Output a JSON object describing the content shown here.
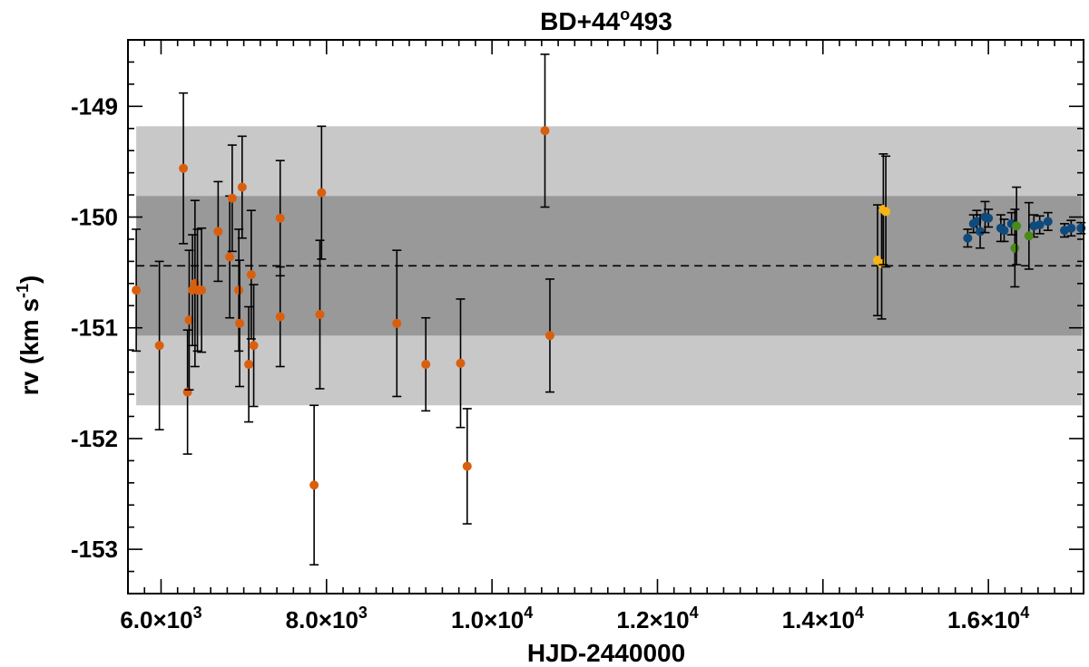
{
  "chart_data": {
    "type": "scatter",
    "title": {
      "main": "BD+44",
      "sup": "o",
      "rest": "493"
    },
    "xlabel": "HJD-2440000",
    "ylabel": {
      "main": "rv (km s",
      "sup": "-1",
      "close": ")"
    },
    "xlim": [
      5600,
      17150
    ],
    "ylim": [
      -153.4,
      -148.4
    ],
    "x_ticks": [
      {
        "value": 6000,
        "mantissa": "6.0",
        "times": "×10",
        "exp": "3"
      },
      {
        "value": 8000,
        "mantissa": "8.0",
        "times": "×10",
        "exp": "3"
      },
      {
        "value": 10000,
        "mantissa": "1.0",
        "times": "×10",
        "exp": "4"
      },
      {
        "value": 12000,
        "mantissa": "1.2",
        "times": "×10",
        "exp": "4"
      },
      {
        "value": 14000,
        "mantissa": "1.4",
        "times": "×10",
        "exp": "4"
      },
      {
        "value": 16000,
        "mantissa": "1.6",
        "times": "×10",
        "exp": "4"
      }
    ],
    "y_ticks": [
      {
        "value": -149,
        "label": "-149"
      },
      {
        "value": -150,
        "label": "-150"
      },
      {
        "value": -151,
        "label": "-151"
      },
      {
        "value": -152,
        "label": "-152"
      },
      {
        "value": -153,
        "label": "-153"
      }
    ],
    "mean": -150.44,
    "bands": [
      {
        "y0": -151.7,
        "y1": -149.18,
        "color": "#c8c8c8"
      },
      {
        "y0": -151.07,
        "y1": -149.81,
        "color": "#999999"
      }
    ],
    "series": [
      {
        "color": "#d95f0e",
        "points": [
          {
            "x": 5700,
            "y": -150.66,
            "err": 0.55
          },
          {
            "x": 5980,
            "y": -151.16,
            "err": 0.76
          },
          {
            "x": 6270,
            "y": -149.56,
            "err": 0.68
          },
          {
            "x": 6320,
            "y": -151.58,
            "err": 0.56
          },
          {
            "x": 6340,
            "y": -150.93,
            "err": 0.63
          },
          {
            "x": 6380,
            "y": -150.66,
            "err": 0.5
          },
          {
            "x": 6410,
            "y": -150.6,
            "err": 0.75
          },
          {
            "x": 6440,
            "y": -150.66,
            "err": 0.55
          },
          {
            "x": 6490,
            "y": -150.66,
            "err": 0.56
          },
          {
            "x": 6690,
            "y": -150.13,
            "err": 0.45
          },
          {
            "x": 6830,
            "y": -150.36,
            "err": 0.55
          },
          {
            "x": 6860,
            "y": -149.83,
            "err": 0.48
          },
          {
            "x": 6940,
            "y": -150.66,
            "err": 0.55
          },
          {
            "x": 6950,
            "y": -150.96,
            "err": 0.57
          },
          {
            "x": 6980,
            "y": -149.73,
            "err": 0.46
          },
          {
            "x": 7060,
            "y": -151.33,
            "err": 0.52
          },
          {
            "x": 7090,
            "y": -150.52,
            "err": 0.58
          },
          {
            "x": 7120,
            "y": -151.16,
            "err": 0.55
          },
          {
            "x": 7440,
            "y": -150.01,
            "err": 0.52
          },
          {
            "x": 7440,
            "y": -150.9,
            "err": 0.45
          },
          {
            "x": 7850,
            "y": -152.42,
            "err": 0.72
          },
          {
            "x": 7920,
            "y": -150.88,
            "err": 0.67
          },
          {
            "x": 7940,
            "y": -149.78,
            "err": 0.6
          },
          {
            "x": 8850,
            "y": -150.96,
            "err": 0.66
          },
          {
            "x": 9200,
            "y": -151.33,
            "err": 0.42
          },
          {
            "x": 9620,
            "y": -151.32,
            "err": 0.58
          },
          {
            "x": 9700,
            "y": -152.25,
            "err": 0.52
          },
          {
            "x": 10640,
            "y": -149.22,
            "err": 0.69
          },
          {
            "x": 10700,
            "y": -151.07,
            "err": 0.51
          }
        ]
      },
      {
        "color": "#f6b417",
        "points": [
          {
            "x": 14660,
            "y": -150.39,
            "err": 0.5
          },
          {
            "x": 14710,
            "y": -150.42,
            "err": 0.5
          },
          {
            "x": 14730,
            "y": -149.93,
            "err": 0.5
          },
          {
            "x": 14760,
            "y": -149.95,
            "err": 0.5
          }
        ]
      },
      {
        "color": "#0f4a7c",
        "points": [
          {
            "x": 15750,
            "y": -150.19,
            "err": 0.08
          },
          {
            "x": 15820,
            "y": -150.06,
            "err": 0.08
          },
          {
            "x": 15860,
            "y": -150.04,
            "err": 0.1
          },
          {
            "x": 15900,
            "y": -150.13,
            "err": 0.15
          },
          {
            "x": 15960,
            "y": -150.0,
            "err": 0.14
          },
          {
            "x": 16000,
            "y": -150.01,
            "err": 0.08
          },
          {
            "x": 16150,
            "y": -150.1,
            "err": 0.12
          },
          {
            "x": 16190,
            "y": -150.12,
            "err": 0.1
          },
          {
            "x": 16280,
            "y": -150.06,
            "err": 0.1
          },
          {
            "x": 16550,
            "y": -150.08,
            "err": 0.1
          },
          {
            "x": 16620,
            "y": -150.07,
            "err": 0.08
          },
          {
            "x": 16720,
            "y": -150.04,
            "err": 0.08
          },
          {
            "x": 16920,
            "y": -150.12,
            "err": 0.06
          },
          {
            "x": 17000,
            "y": -150.1,
            "err": 0.07
          },
          {
            "x": 17120,
            "y": -150.1,
            "err": 0.05
          }
        ]
      },
      {
        "color": "#4a8a19",
        "points": [
          {
            "x": 16320,
            "y": -150.28,
            "err": 0.35
          },
          {
            "x": 16340,
            "y": -150.08,
            "err": 0.35
          },
          {
            "x": 16490,
            "y": -150.17,
            "err": 0.3
          }
        ]
      }
    ]
  }
}
